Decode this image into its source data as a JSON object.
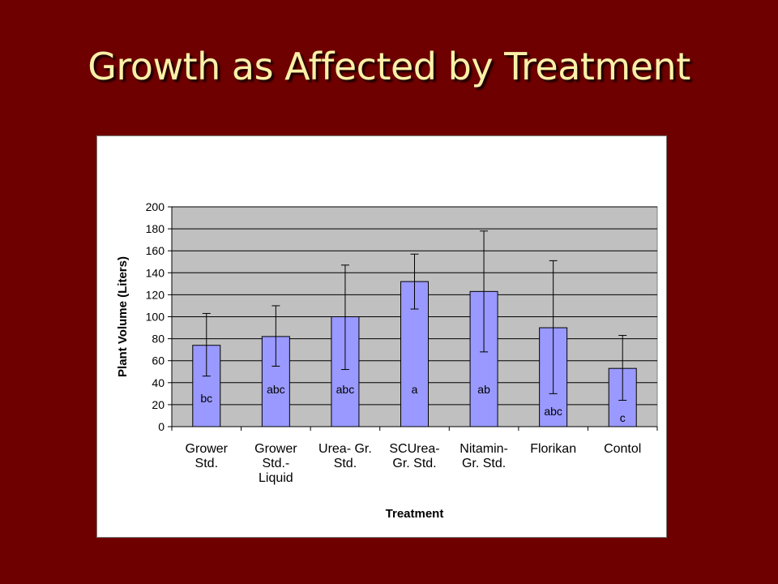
{
  "slide": {
    "title": "Growth as Affected by Treatment"
  },
  "colors": {
    "background": "#6e0000",
    "title": "#fbf0a8",
    "plot_area": "#c0c0c0",
    "bar_fill": "#9999ff",
    "bar_stroke": "#000000"
  },
  "chart_data": {
    "type": "bar",
    "categories": [
      [
        "Grower",
        "Std."
      ],
      [
        "Grower",
        "Std.-",
        "Liquid"
      ],
      [
        "Urea- Gr.",
        "Std."
      ],
      [
        "SCUrea-",
        "Gr. Std."
      ],
      [
        "Nitamin-",
        "Gr. Std."
      ],
      [
        "Florikan"
      ],
      [
        "Contol"
      ]
    ],
    "values": [
      74,
      82,
      100,
      132,
      123,
      90,
      53
    ],
    "error_bars": [
      [
        46,
        103
      ],
      [
        55,
        110
      ],
      [
        52,
        147
      ],
      [
        107,
        157
      ],
      [
        68,
        178
      ],
      [
        30,
        151
      ],
      [
        24,
        83
      ]
    ],
    "bar_labels": [
      "bc",
      "abc",
      "abc",
      "a",
      "ab",
      "abc",
      "c"
    ],
    "bar_label_values": [
      26,
      34,
      34,
      34,
      34,
      14,
      8
    ],
    "title": "",
    "xlabel": "Treatment",
    "ylabel": "Plant Volume (Liters)",
    "ylim": [
      0,
      200
    ],
    "yticks": [
      0,
      20,
      40,
      60,
      80,
      100,
      120,
      140,
      160,
      180,
      200
    ],
    "grid": true,
    "legend": "none"
  }
}
